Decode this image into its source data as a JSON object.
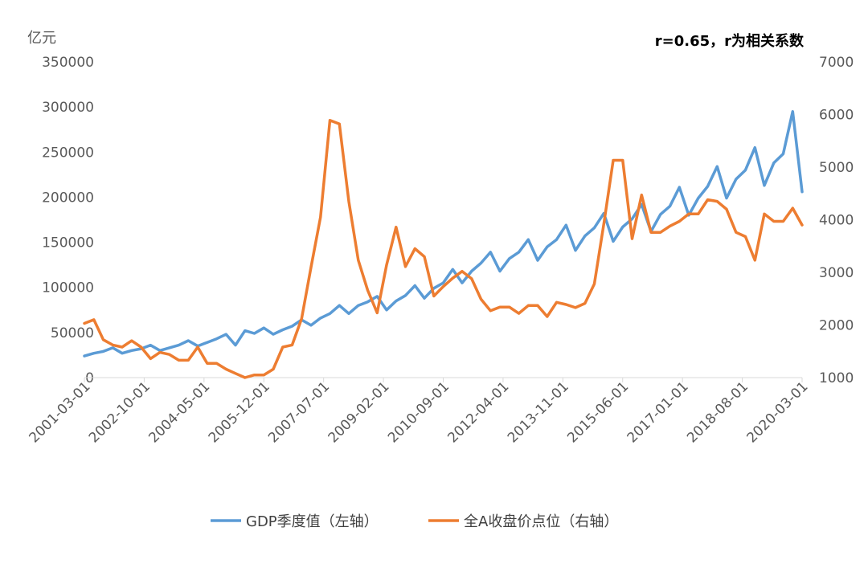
{
  "chart_data": {
    "type": "line",
    "ylabel_left": "亿元",
    "annotation": "r=0.65，r为相关系数",
    "y_left": {
      "ylim": [
        0,
        350000
      ],
      "ticks": [
        "0",
        "50000",
        "100000",
        "150000",
        "200000",
        "250000",
        "300000",
        "350000"
      ]
    },
    "y_right": {
      "ylim": [
        1000,
        7000
      ],
      "ticks": [
        "1000",
        "2000",
        "3000",
        "4000",
        "5000",
        "6000",
        "7000"
      ]
    },
    "x_tick_labels": [
      "2001-03-01",
      "2002-10-01",
      "2004-05-01",
      "2005-12-01",
      "2007-07-01",
      "2009-02-01",
      "2010-09-01",
      "2012-04-01",
      "2013-11-01",
      "2015-06-01",
      "2017-01-01",
      "2018-08-01",
      "2020-03-01"
    ],
    "grid": false,
    "legend_position": "bottom",
    "series": [
      {
        "name": "GDP季度值（左轴）",
        "axis": "left",
        "color": "#5B9BD5",
        "values": [
          24000,
          27000,
          29000,
          33000,
          27000,
          30000,
          32000,
          36000,
          30000,
          33000,
          36000,
          41000,
          35000,
          39000,
          43000,
          48000,
          36000,
          52000,
          49000,
          55000,
          48000,
          53000,
          57000,
          64000,
          58000,
          66000,
          71000,
          80000,
          71000,
          80000,
          84000,
          90000,
          75000,
          85000,
          91000,
          102000,
          88000,
          99000,
          105000,
          120000,
          105000,
          118000,
          127000,
          139000,
          118000,
          132000,
          139000,
          153000,
          130000,
          145000,
          153000,
          169000,
          141000,
          157000,
          166000,
          182000,
          151000,
          167000,
          176000,
          192000,
          162000,
          181000,
          190000,
          211000,
          180000,
          199000,
          212000,
          234000,
          199000,
          220000,
          230000,
          255000,
          213000,
          238000,
          248000,
          295000,
          206000
        ]
      },
      {
        "name": "全A收盘价点位（右轴）",
        "axis": "right",
        "color": "#ED7D31",
        "values": [
          2030,
          2100,
          1720,
          1620,
          1580,
          1700,
          1580,
          1360,
          1480,
          1440,
          1330,
          1330,
          1580,
          1270,
          1270,
          1160,
          1080,
          1000,
          1050,
          1050,
          1160,
          1580,
          1620,
          2120,
          3100,
          4050,
          5890,
          5820,
          4350,
          3230,
          2660,
          2230,
          3140,
          3860,
          3110,
          3450,
          3300,
          2550,
          2730,
          2890,
          3020,
          2880,
          2490,
          2270,
          2340,
          2340,
          2220,
          2370,
          2370,
          2160,
          2430,
          2390,
          2330,
          2410,
          2780,
          3920,
          5130,
          5130,
          3640,
          4470,
          3760,
          3760,
          3880,
          3970,
          4110,
          4110,
          4380,
          4350,
          4200,
          3760,
          3680,
          3230,
          4110,
          3970,
          3970,
          4220,
          3900
        ]
      }
    ]
  }
}
